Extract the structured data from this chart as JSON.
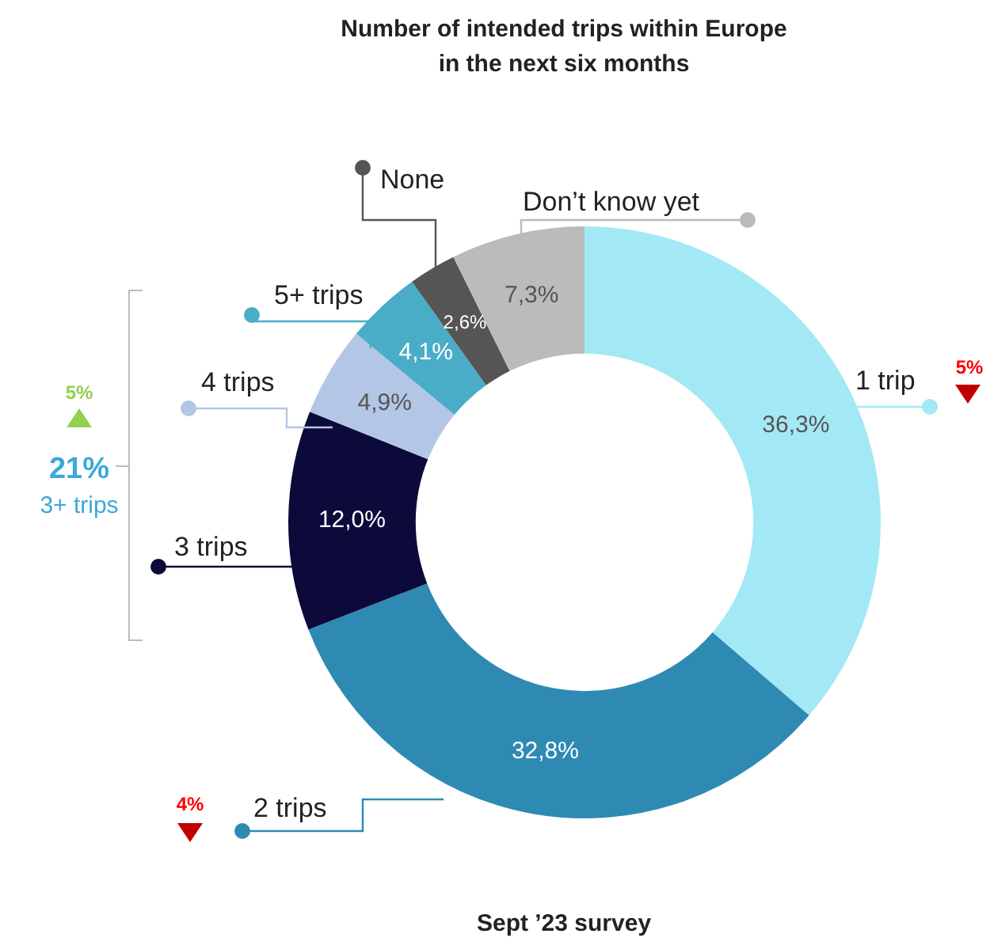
{
  "chart_data": {
    "type": "donut",
    "title": "Number of intended trips within Europe in the next six months",
    "categories": [
      "1 trip",
      "2 trips",
      "3 trips",
      "4 trips",
      "5+ trips",
      "None",
      "Don’t know yet"
    ],
    "values": [
      36.3,
      32.8,
      12.0,
      4.9,
      4.1,
      2.6,
      7.3
    ],
    "colors": [
      "#a3e8f5",
      "#2e8ab3",
      "#0c0a3a",
      "#b3c6e6",
      "#49adc8",
      "#555555",
      "#bbbbbb"
    ],
    "value_labels": [
      "36,3%",
      "32,8%",
      "12,0%",
      "4,9%",
      "4,1%",
      "2,6%",
      "7,3%"
    ],
    "annotations": [
      "5%",
      "21%",
      "3+ trips",
      "4%",
      "5%",
      "Sept ’23 survey"
    ]
  }
}
